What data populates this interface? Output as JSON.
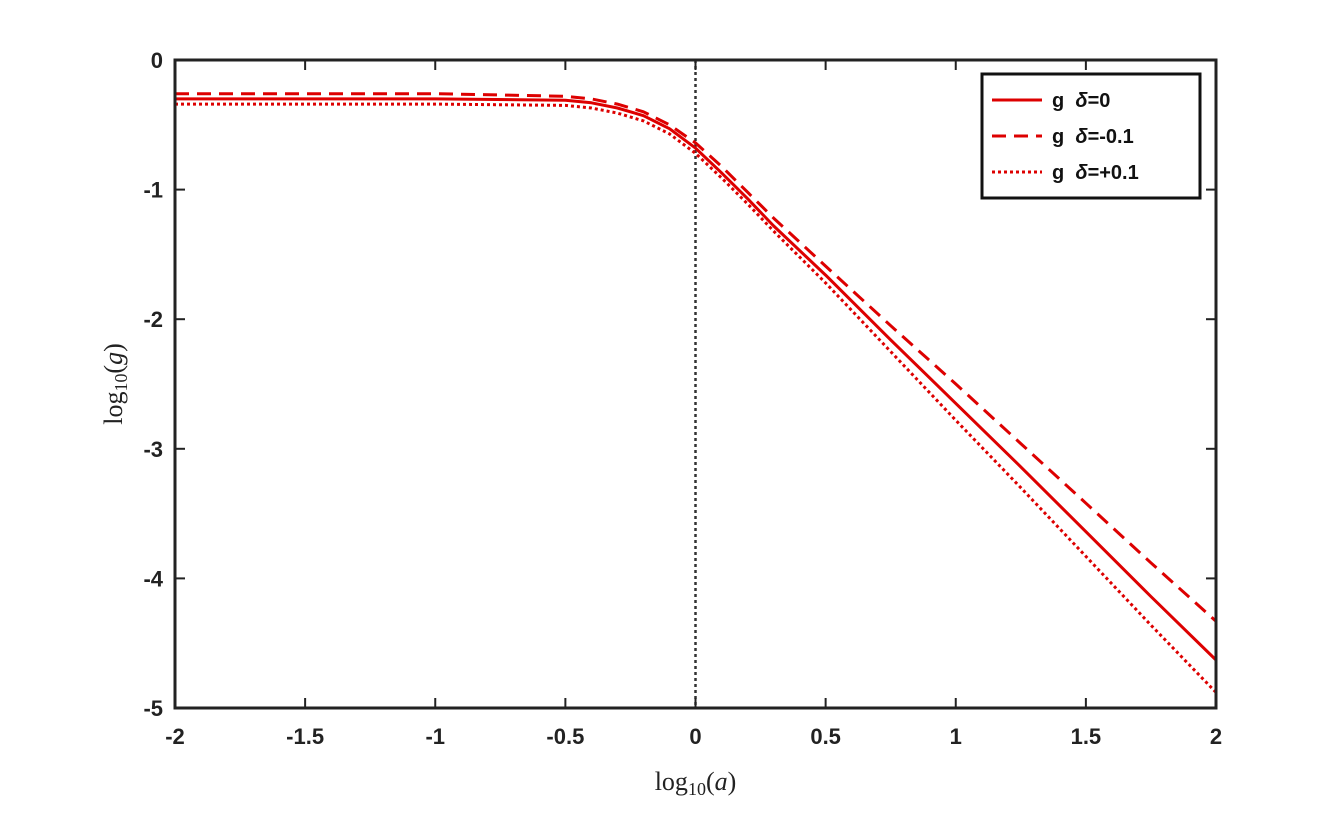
{
  "chart_data": {
    "type": "line",
    "xlabel": "log10(a)",
    "ylabel": "log10(g)",
    "xlim": [
      -2,
      2
    ],
    "ylim": [
      -5,
      0
    ],
    "xticks": [
      -2,
      -1.5,
      -1,
      -0.5,
      0,
      0.5,
      1,
      1.5,
      2
    ],
    "xtick_labels": [
      "-2",
      "-1.5",
      "-1",
      "-0.5",
      "0",
      "0.5",
      "1",
      "1.5",
      "2"
    ],
    "yticks": [
      0,
      -1,
      -2,
      -3,
      -4,
      -5
    ],
    "ytick_labels": [
      "0",
      "-1",
      "-2",
      "-3",
      "-4",
      "-5"
    ],
    "grid": false,
    "legend_position": "top-right",
    "reference_line": {
      "x": 0,
      "style": "dotted",
      "color": "#333333"
    },
    "series": [
      {
        "name": "g  δ=0",
        "legend_prefix": "g",
        "legend_symbol": "δ",
        "legend_value": "=0",
        "style": "solid",
        "color": "#dd0000",
        "x": [
          -2,
          -1.5,
          -1,
          -0.5,
          -0.4,
          -0.3,
          -0.2,
          -0.1,
          0,
          0.1,
          0.2,
          0.3,
          0.5,
          0.75,
          1,
          1.25,
          1.5,
          1.75,
          2
        ],
        "y": [
          -0.3,
          -0.3,
          -0.3,
          -0.31,
          -0.33,
          -0.37,
          -0.43,
          -0.53,
          -0.68,
          -0.87,
          -1.07,
          -1.28,
          -1.66,
          -2.16,
          -2.65,
          -3.14,
          -3.64,
          -4.14,
          -4.63
        ]
      },
      {
        "name": "g  δ=-0.1",
        "legend_prefix": "g",
        "legend_symbol": "δ",
        "legend_value": "=-0.1",
        "style": "dashed",
        "color": "#dd0000",
        "x": [
          -2,
          -1.5,
          -1,
          -0.5,
          -0.4,
          -0.3,
          -0.2,
          -0.1,
          0,
          0.1,
          0.2,
          0.3,
          0.5,
          0.75,
          1,
          1.25,
          1.5,
          1.75,
          2
        ],
        "y": [
          -0.26,
          -0.26,
          -0.26,
          -0.28,
          -0.3,
          -0.34,
          -0.4,
          -0.5,
          -0.64,
          -0.82,
          -1.02,
          -1.22,
          -1.59,
          -2.05,
          -2.5,
          -2.96,
          -3.42,
          -3.88,
          -4.33
        ]
      },
      {
        "name": "g  δ=+0.1",
        "legend_prefix": "g",
        "legend_symbol": "δ",
        "legend_value": "=+0.1",
        "style": "dotted",
        "color": "#dd0000",
        "x": [
          -2,
          -1.5,
          -1,
          -0.5,
          -0.4,
          -0.3,
          -0.2,
          -0.1,
          0,
          0.1,
          0.2,
          0.3,
          0.5,
          0.75,
          1,
          1.25,
          1.5,
          1.75,
          2
        ],
        "y": [
          -0.34,
          -0.34,
          -0.34,
          -0.35,
          -0.37,
          -0.41,
          -0.47,
          -0.57,
          -0.72,
          -0.91,
          -1.11,
          -1.32,
          -1.72,
          -2.25,
          -2.78,
          -3.3,
          -3.83,
          -4.36,
          -4.88
        ]
      }
    ]
  }
}
